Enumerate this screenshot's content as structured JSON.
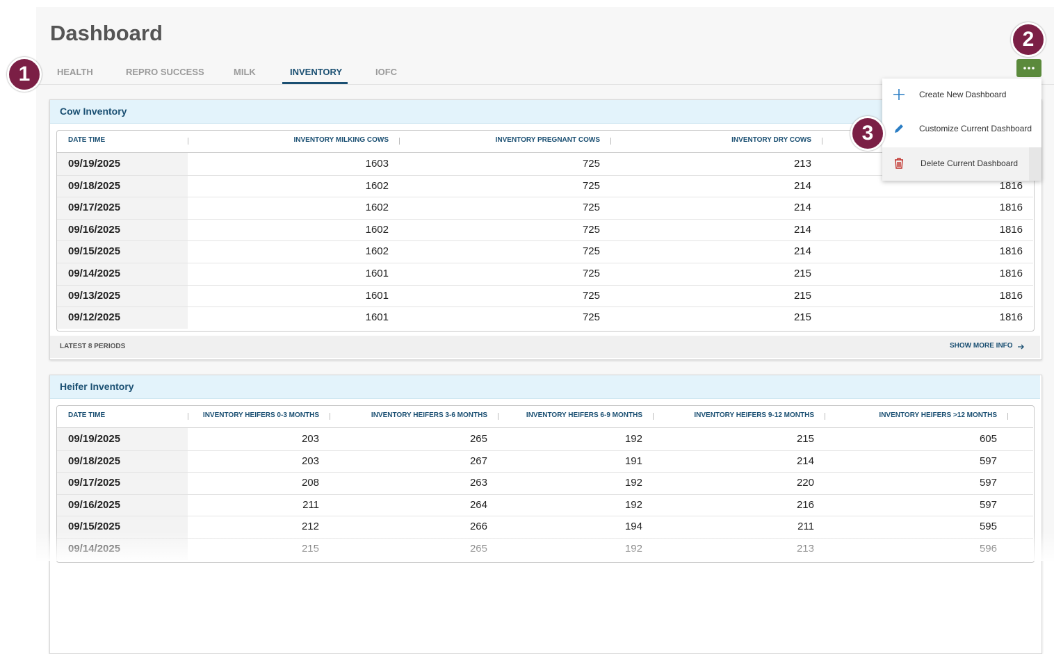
{
  "header": {
    "title": "Dashboard"
  },
  "tabs": {
    "items": [
      "HEALTH",
      "REPRO SUCCESS",
      "MILK",
      "INVENTORY",
      "IOFC"
    ],
    "active": 3
  },
  "callouts": [
    "1",
    "2",
    "3"
  ],
  "menu": {
    "items": [
      "Create New Dashboard",
      "Customize Current Dashboard",
      "Delete Current Dashboard"
    ]
  },
  "cards": [
    {
      "title": "Cow Inventory",
      "columns": [
        "DATE TIME",
        "INVENTORY MILKING COWS",
        "INVENTORY PREGNANT COWS",
        "INVENTORY DRY COWS",
        null
      ],
      "rows": [
        [
          "09/19/2025",
          1603,
          725,
          213,
          null
        ],
        [
          "09/18/2025",
          1602,
          725,
          214,
          1816
        ],
        [
          "09/17/2025",
          1602,
          725,
          214,
          1816
        ],
        [
          "09/16/2025",
          1602,
          725,
          214,
          1816
        ],
        [
          "09/15/2025",
          1602,
          725,
          214,
          1816
        ],
        [
          "09/14/2025",
          1601,
          725,
          215,
          1816
        ],
        [
          "09/13/2025",
          1601,
          725,
          215,
          1816
        ],
        [
          "09/12/2025",
          1601,
          725,
          215,
          1816
        ]
      ],
      "footer": {
        "left": "LATEST 8 PERIODS",
        "right": "SHOW MORE INFO"
      }
    },
    {
      "title": "Heifer Inventory",
      "columns": [
        "DATE TIME",
        "INVENTORY HEIFERS 0-3 MONTHS",
        "INVENTORY HEIFERS 3-6 MONTHS",
        "INVENTORY HEIFERS 6-9 MONTHS",
        "INVENTORY HEIFERS 9-12 MONTHS",
        "INVENTORY HEIFERS >12 MONTHS"
      ],
      "rows": [
        [
          "09/19/2025",
          203,
          265,
          192,
          215,
          605
        ],
        [
          "09/18/2025",
          203,
          267,
          191,
          214,
          597
        ],
        [
          "09/17/2025",
          208,
          263,
          192,
          220,
          597
        ],
        [
          "09/16/2025",
          211,
          264,
          192,
          216,
          597
        ],
        [
          "09/15/2025",
          212,
          266,
          194,
          211,
          595
        ],
        [
          "09/14/2025",
          215,
          265,
          192,
          213,
          596
        ]
      ]
    }
  ]
}
